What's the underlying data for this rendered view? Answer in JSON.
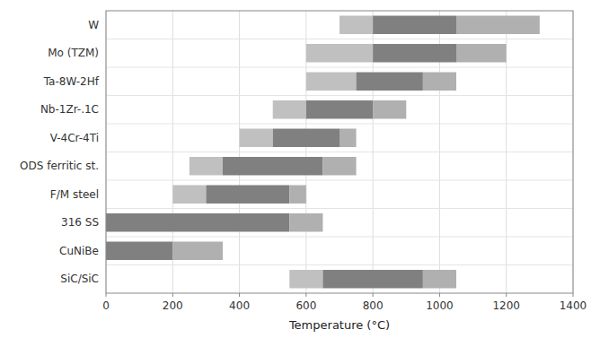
{
  "chart_data": {
    "type": "bar",
    "orientation": "horizontal",
    "categories": [
      "W",
      "Mo (TZM)",
      "Ta-8W-2Hf",
      "Nb-1Zr-.1C",
      "V-4Cr-4Ti",
      "ODS ferritic st.",
      "F/M steel",
      "316 SS",
      "CuNiBe",
      "SiC/SiC"
    ],
    "series": [
      {
        "color": "#c0c0c0",
        "starts": [
          700,
          600,
          600,
          500,
          400,
          250,
          200,
          null,
          null,
          550
        ],
        "values": [
          100,
          200,
          150,
          100,
          100,
          100,
          100,
          null,
          null,
          100
        ]
      },
      {
        "color": "#808080",
        "starts": [
          800,
          800,
          750,
          600,
          500,
          350,
          300,
          0,
          0,
          650
        ],
        "values": [
          250,
          250,
          200,
          200,
          200,
          300,
          250,
          550,
          200,
          300
        ]
      },
      {
        "color": "#b0b0b0",
        "starts": [
          1050,
          1050,
          950,
          800,
          700,
          650,
          550,
          550,
          200,
          950
        ],
        "values": [
          250,
          150,
          100,
          100,
          50,
          100,
          50,
          100,
          150,
          100
        ]
      }
    ],
    "xlabel": "Temperature (°C)",
    "xlim": [
      0,
      1400
    ],
    "xticks": [
      0,
      200,
      400,
      600,
      800,
      1000,
      1200,
      1400
    ],
    "grid": true
  }
}
